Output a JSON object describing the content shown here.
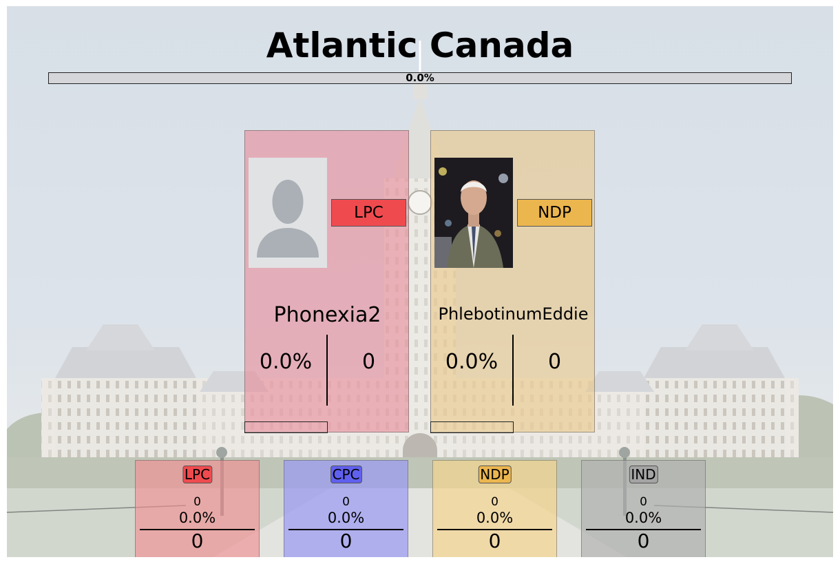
{
  "title": "Atlantic Canada",
  "overall": {
    "progress_pct": 0.0,
    "progress_label": "0.0%"
  },
  "candidates": [
    {
      "name": "Phonexia2",
      "party": "LPC",
      "party_color": "#ef4b4f",
      "card_color": "rgba(232,139,152,0.60)",
      "photo_icon": "default-avatar-icon",
      "vote_pct": "0.0%",
      "seats": "0",
      "bar_progress": 0.0
    },
    {
      "name": "PhlebotinumEddie",
      "party": "NDP",
      "party_color": "#ecb64f",
      "card_color": "rgba(234,198,132,0.58)",
      "photo_icon": "candidate-photo-man-in-suit",
      "vote_pct": "0.0%",
      "seats": "0",
      "bar_progress": 0.0
    }
  ],
  "parties": [
    {
      "abbr": "LPC",
      "tag_color": "#ef4b4f",
      "card_color": "rgba(242,140,144,0.62)",
      "votes": "0",
      "vote_pct": "0.0%",
      "seats": "0"
    },
    {
      "abbr": "CPC",
      "tag_color": "#6060ef",
      "card_color": "rgba(150,150,245,0.68)",
      "votes": "0",
      "vote_pct": "0.0%",
      "seats": "0"
    },
    {
      "abbr": "NDP",
      "tag_color": "#ecb64f",
      "card_color": "rgba(245,212,140,0.68)",
      "votes": "0",
      "vote_pct": "0.0%",
      "seats": "0"
    },
    {
      "abbr": "IND",
      "tag_color": "#a4a4a4",
      "card_color": "rgba(175,175,175,0.65)",
      "votes": "0",
      "vote_pct": "0.0%",
      "seats": "0"
    }
  ],
  "background_image": "parliament-hill-centre-block"
}
